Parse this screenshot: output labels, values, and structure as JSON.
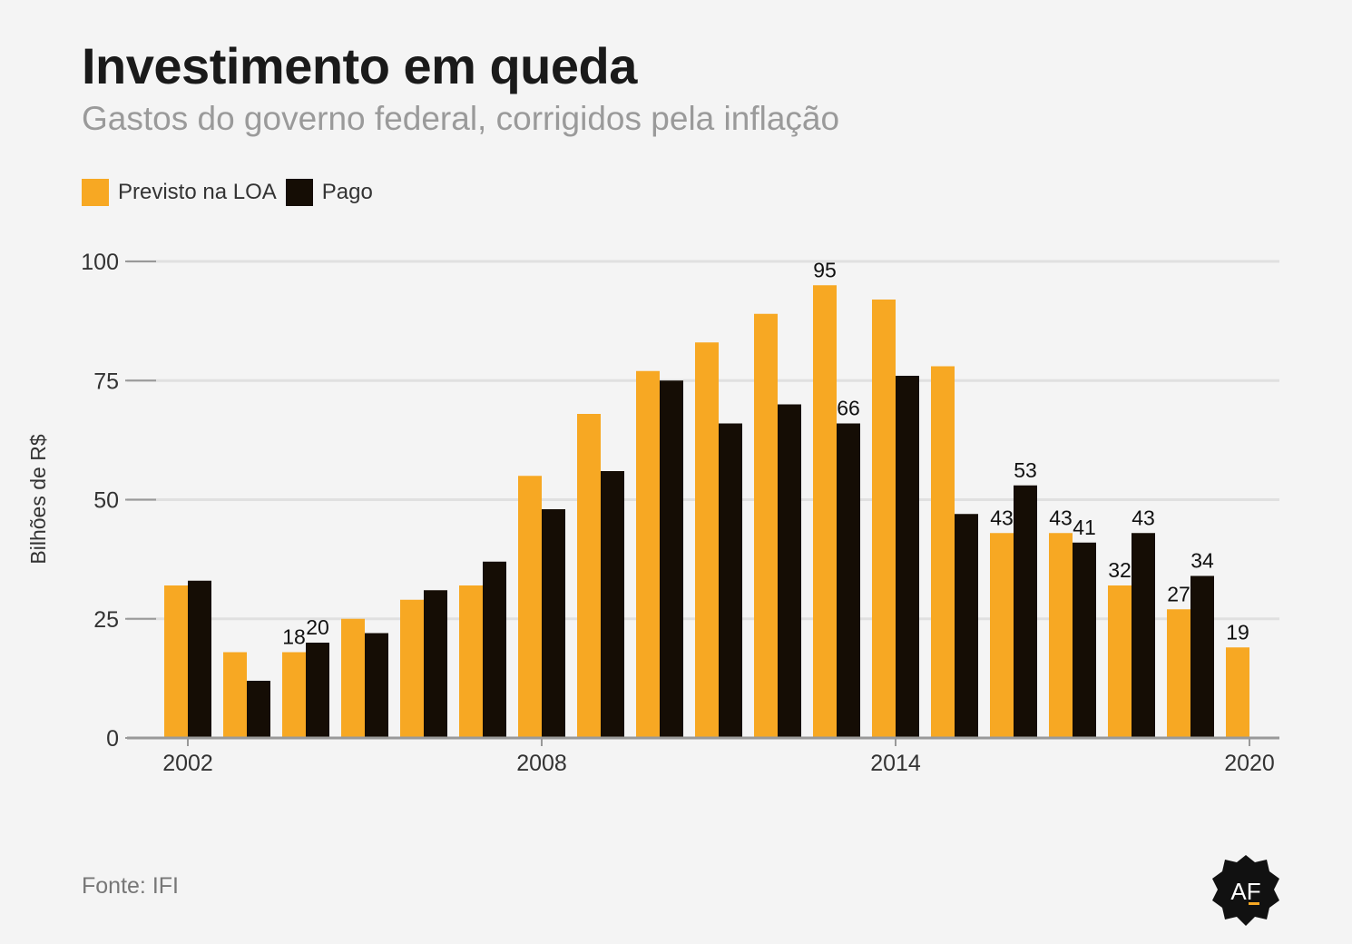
{
  "header": {
    "title": "Investimento em queda",
    "subtitle": "Gastos do governo federal, corrigidos pela inflação"
  },
  "legend": {
    "items": [
      {
        "label": "Previsto na LOA",
        "color": "#f7a823"
      },
      {
        "label": "Pago",
        "color": "#150d05"
      }
    ]
  },
  "footer": {
    "source": "Fonte: IFI",
    "logo_text": "AF"
  },
  "chart_data": {
    "type": "bar",
    "categories": [
      2002,
      2003,
      2004,
      2005,
      2006,
      2007,
      2008,
      2009,
      2010,
      2011,
      2012,
      2013,
      2014,
      2015,
      2016,
      2017,
      2018,
      2019,
      2020
    ],
    "x_tick_labels": [
      "2002",
      "2008",
      "2014",
      "2020"
    ],
    "ylabel": "Bilhões de R$",
    "ylim": [
      0,
      100
    ],
    "y_ticks": [
      0,
      25,
      50,
      75,
      100
    ],
    "grid": true,
    "legend_position": "top-left",
    "series": [
      {
        "name": "Previsto na LOA",
        "color": "#f7a823",
        "values": [
          32,
          18,
          18,
          25,
          29,
          32,
          55,
          68,
          77,
          83,
          89,
          95,
          92,
          78,
          43,
          43,
          32,
          27,
          19
        ],
        "labels": [
          null,
          null,
          "18",
          null,
          null,
          null,
          null,
          null,
          null,
          null,
          null,
          "95",
          null,
          null,
          "43",
          "43",
          "32",
          "27",
          "19"
        ]
      },
      {
        "name": "Pago",
        "color": "#150d05",
        "values": [
          33,
          12,
          20,
          22,
          31,
          37,
          48,
          56,
          75,
          66,
          70,
          66,
          76,
          47,
          53,
          41,
          43,
          34,
          null
        ],
        "labels": [
          null,
          null,
          "20",
          null,
          null,
          null,
          null,
          null,
          null,
          null,
          null,
          "66",
          null,
          null,
          "53",
          "41",
          "43",
          "34",
          null
        ]
      }
    ]
  }
}
